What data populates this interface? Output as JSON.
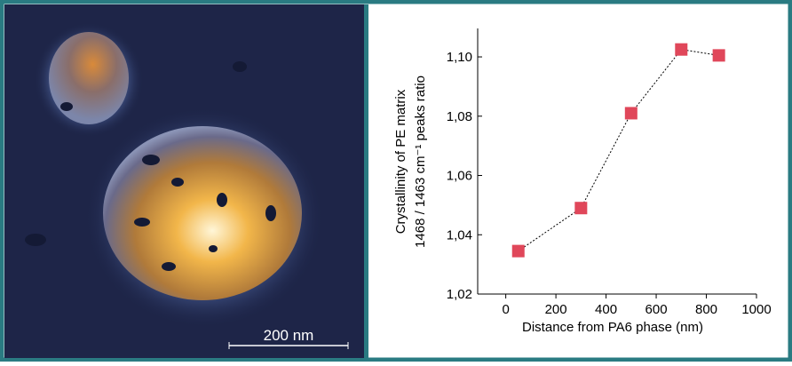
{
  "image": {
    "scale_bar": "200 nm"
  },
  "chart_data": {
    "type": "line",
    "x_label": "Distance from PA6 phase (nm)",
    "y_label": [
      "Crystallinity of PE matrix",
      "1468 / 1463 cm⁻¹ peaks ratio"
    ],
    "x": [
      50,
      300,
      500,
      700,
      850
    ],
    "series": [
      {
        "color": "#e0475a",
        "values": [
          1.0345,
          1.049,
          1.081,
          1.1025,
          1.1005
        ]
      }
    ],
    "xlim": [
      -112,
      1000
    ],
    "xticks": [
      0,
      200,
      400,
      600,
      800,
      1000
    ],
    "ylim": [
      1.02,
      1.1096
    ],
    "yticks": [
      {
        "value": 1.02,
        "label": "1,02"
      },
      {
        "value": 1.04,
        "label": "1,04"
      },
      {
        "value": 1.06,
        "label": "1,06"
      },
      {
        "value": 1.08,
        "label": "1,08"
      },
      {
        "value": 1.1,
        "label": "1,10"
      }
    ]
  }
}
